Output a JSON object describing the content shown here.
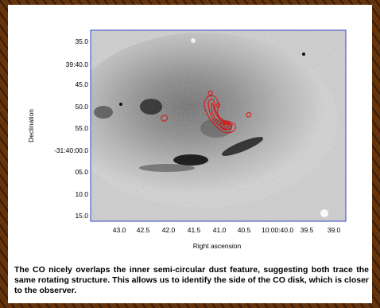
{
  "figure": {
    "y_ticks": [
      "35.0",
      "39:40.0",
      "45.0",
      "50.0",
      "55.0",
      "-31:40:00.0",
      "05.0",
      "10.0",
      "15.0"
    ],
    "x_ticks": [
      "43.0",
      "42.5",
      "42.0",
      "41.5",
      "41.0",
      "40.5",
      "10:00:40.0",
      "39.5",
      "39.0"
    ],
    "x_label": "Right ascension",
    "y_label": "Declination",
    "frame_color": "#3344cc",
    "contour_color": "#e01010"
  },
  "caption": {
    "text": "The CO nicely overlaps the inner semi-circular dust feature, suggesting both trace the same rotating structure. This allows us to identify the side of the CO disk, which is closer to the observer."
  }
}
